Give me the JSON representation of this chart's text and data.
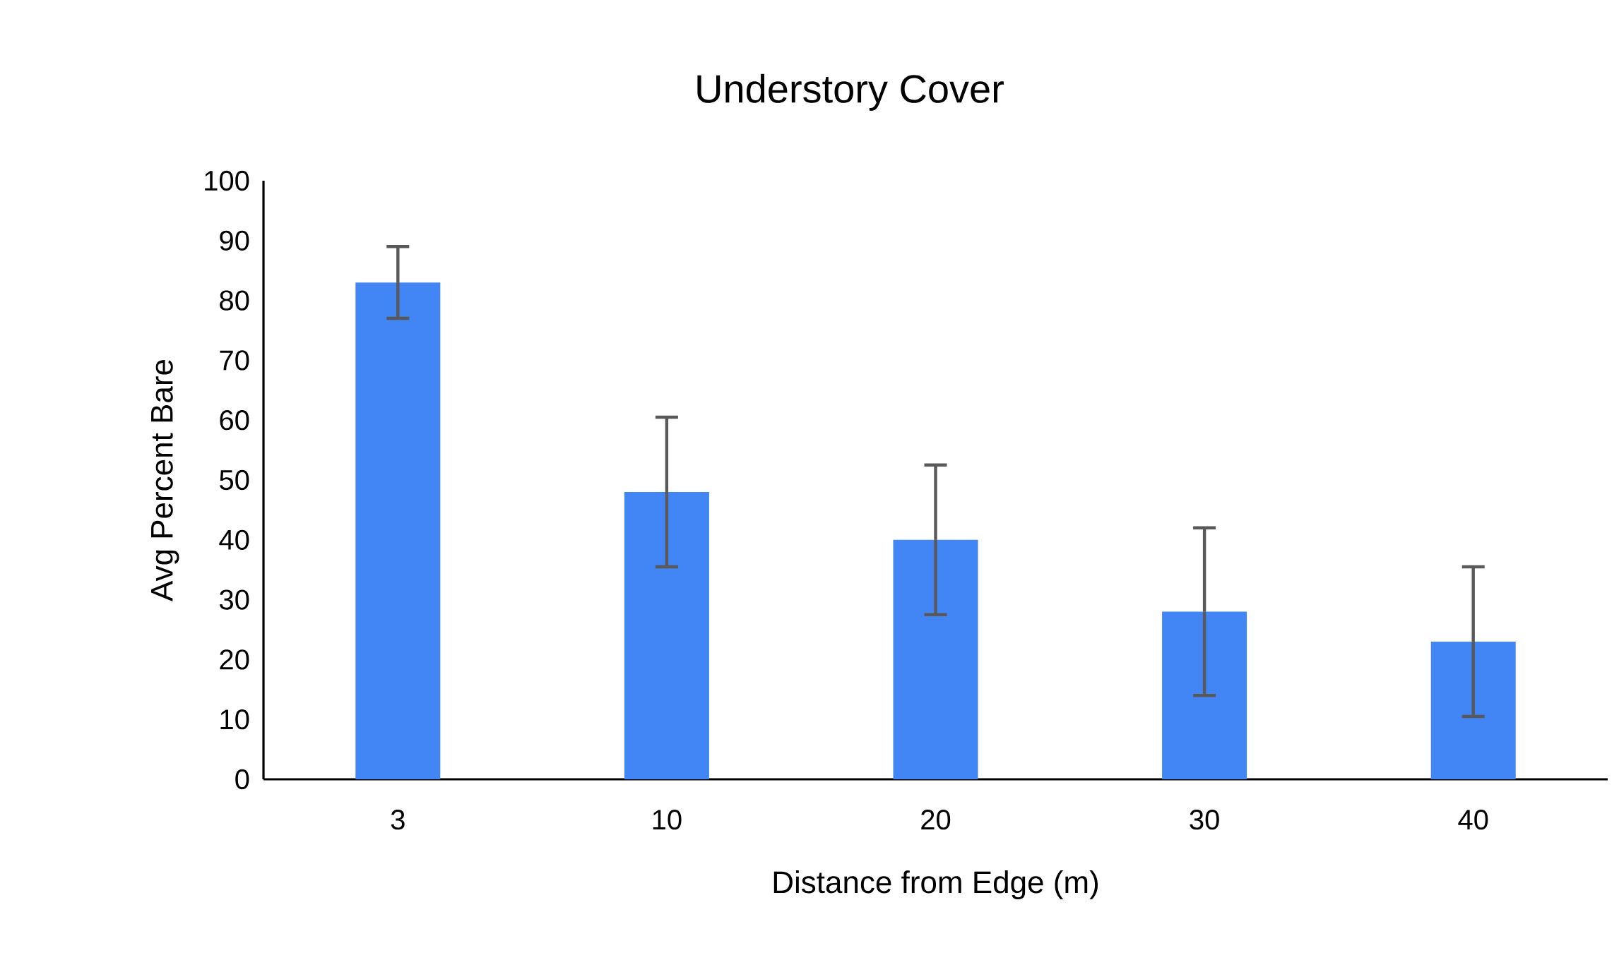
{
  "chart_data": {
    "type": "bar",
    "title": "Understory Cover",
    "xlabel": "Distance from Edge (m)",
    "ylabel": "Avg Percent Bare",
    "categories": [
      "3",
      "10",
      "20",
      "30",
      "40"
    ],
    "values": [
      83,
      48,
      40,
      28,
      23
    ],
    "errors": [
      6,
      12.5,
      12.5,
      14,
      12.5
    ],
    "color": "#4285f4",
    "ylim": [
      0,
      100
    ],
    "yticks": [
      0,
      10,
      20,
      30,
      40,
      50,
      60,
      70,
      80,
      90,
      100
    ],
    "grid": false
  }
}
